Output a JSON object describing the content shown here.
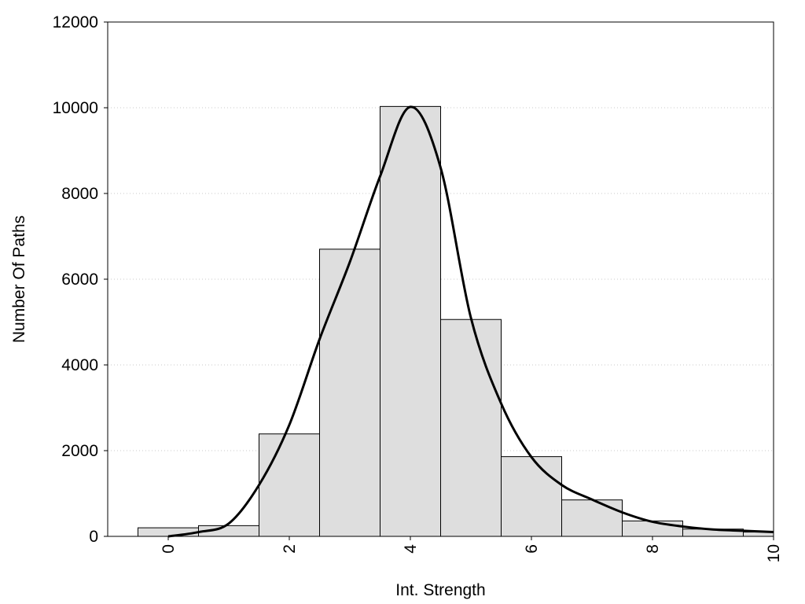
{
  "chart_data": {
    "type": "bar",
    "xlabel": "Int. Strength",
    "ylabel": "Number Of Paths",
    "xlim": [
      -1,
      10
    ],
    "ylim": [
      0,
      12000
    ],
    "x_ticks": [
      0,
      2,
      4,
      6,
      8,
      10
    ],
    "y_ticks": [
      0,
      2000,
      4000,
      6000,
      8000,
      10000,
      12000
    ],
    "grid": "horizontal dotted",
    "bins": [
      {
        "x": 0,
        "value": 200
      },
      {
        "x": 1,
        "value": 250
      },
      {
        "x": 2,
        "value": 2390
      },
      {
        "x": 3,
        "value": 6700
      },
      {
        "x": 4,
        "value": 10030
      },
      {
        "x": 5,
        "value": 5060
      },
      {
        "x": 6,
        "value": 1860
      },
      {
        "x": 7,
        "value": 850
      },
      {
        "x": 8,
        "value": 360
      },
      {
        "x": 9,
        "value": 170
      },
      {
        "x": 10,
        "value": 100
      }
    ],
    "bin_width": 1,
    "curve": {
      "x": [
        0,
        0.5,
        1,
        1.5,
        2,
        2.5,
        3,
        3.5,
        4,
        4.5,
        5,
        5.5,
        6,
        6.5,
        7,
        7.5,
        8,
        8.5,
        9,
        9.5,
        10
      ],
      "y": [
        0,
        100,
        300,
        1200,
        2600,
        4600,
        6400,
        8400,
        10020,
        8600,
        5100,
        3100,
        1850,
        1200,
        860,
        560,
        340,
        230,
        160,
        130,
        100
      ]
    },
    "colors": {
      "bar_fill": "#dedede",
      "bar_stroke": "#000000",
      "curve": "#000000",
      "grid": "#c8c8c8"
    }
  }
}
